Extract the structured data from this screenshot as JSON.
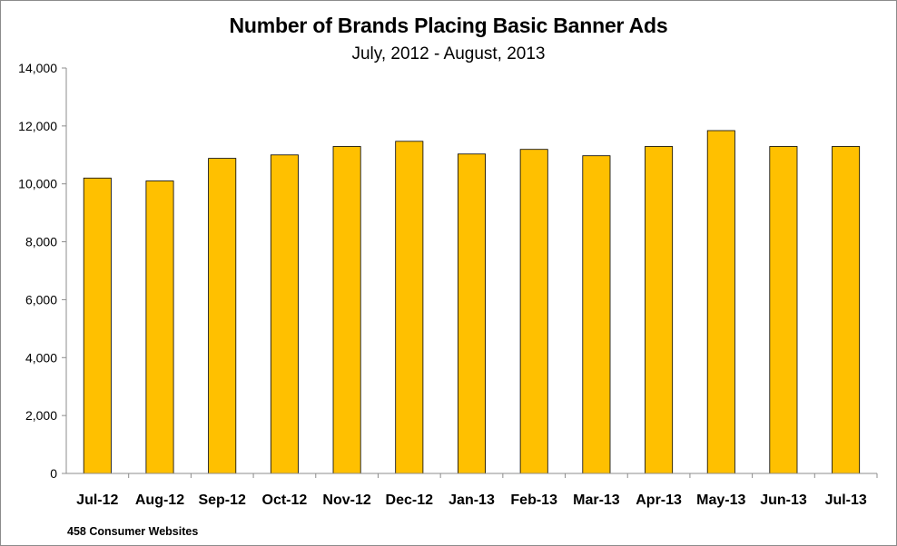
{
  "chart_data": {
    "type": "bar",
    "title": "Number of Brands Placing Basic Banner Ads",
    "subtitle": "July, 2012 - August, 2013",
    "footnote": "458 Consumer Websites",
    "categories": [
      "Jul-12",
      "Aug-12",
      "Sep-12",
      "Oct-12",
      "Nov-12",
      "Dec-12",
      "Jan-13",
      "Feb-13",
      "Mar-13",
      "Apr-13",
      "May-13",
      "Jun-13",
      "Jul-13"
    ],
    "values": [
      10200,
      10100,
      10880,
      11000,
      11290,
      11470,
      11030,
      11190,
      10970,
      11290,
      11840,
      11290,
      11290
    ],
    "ylim": [
      0,
      14000
    ],
    "yticks": [
      0,
      2000,
      4000,
      6000,
      8000,
      10000,
      12000,
      14000
    ],
    "ytick_labels": [
      "0",
      "2,000",
      "4,000",
      "6,000",
      "8,000",
      "10,000",
      "12,000",
      "14,000"
    ],
    "xlabel": "",
    "ylabel": "",
    "grid": false,
    "legend": "none",
    "colors": {
      "bar_fill": "#FFC000",
      "bar_stroke": "#000000",
      "axis": "#8c8c8c"
    }
  }
}
